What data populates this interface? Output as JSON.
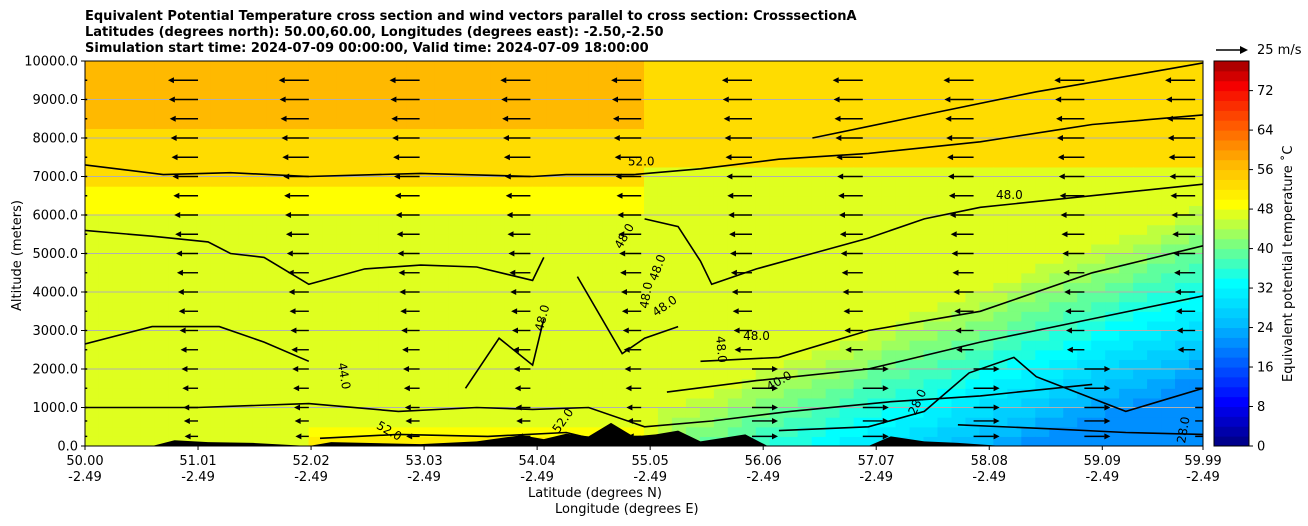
{
  "chart_data": {
    "type": "heatmap",
    "title_lines": [
      "Equivalent Potential Temperature cross section and wind vectors parallel to cross section: CrosssectionA",
      "Latitudes (degrees north): 50.00,60.00, Longitudes (degrees east): -2.50,-2.50",
      "Simulation start time: 2024-07-09 00:00:00, Valid time: 2024-07-09 18:00:00"
    ],
    "xlabel_lat": "Latitude (degrees N)",
    "xlabel_lon": "Longitude (degrees E)",
    "ylabel": "Altitude (meters)",
    "colorbar_label": "Equivalent potential temperature $^\\circ$C",
    "colorbar_label_display": "Equivalent potential temperature ˚C",
    "quiver_key": "25 m/s",
    "x_ticks": [
      {
        "lat": "50.00",
        "lon": "-2.49",
        "v": 50.0
      },
      {
        "lat": "51.01",
        "lon": "-2.49",
        "v": 51.01
      },
      {
        "lat": "52.02",
        "lon": "-2.49",
        "v": 52.02
      },
      {
        "lat": "53.03",
        "lon": "-2.49",
        "v": 53.03
      },
      {
        "lat": "54.04",
        "lon": "-2.49",
        "v": 54.04
      },
      {
        "lat": "55.05",
        "lon": "-2.49",
        "v": 55.05
      },
      {
        "lat": "56.06",
        "lon": "-2.49",
        "v": 56.06
      },
      {
        "lat": "57.07",
        "lon": "-2.49",
        "v": 57.07
      },
      {
        "lat": "58.08",
        "lon": "-2.49",
        "v": 58.08
      },
      {
        "lat": "59.09",
        "lon": "-2.49",
        "v": 59.09
      },
      {
        "lat": "59.99",
        "lon": "-2.49",
        "v": 59.99
      }
    ],
    "y_ticks": [
      "0.0",
      "1000.0",
      "2000.0",
      "3000.0",
      "4000.0",
      "5000.0",
      "6000.0",
      "7000.0",
      "8000.0",
      "9000.0",
      "10000.0"
    ],
    "xlim": [
      50.0,
      59.99
    ],
    "ylim": [
      0,
      10000
    ],
    "colorbar_ticks": [
      "0",
      "8",
      "16",
      "24",
      "32",
      "40",
      "48",
      "56",
      "64",
      "72"
    ],
    "colorbar_range": [
      0,
      78
    ],
    "colorbar_step": 2,
    "contour_labels": [
      {
        "text": "52.0",
        "lat": 54.97,
        "alt": 7280,
        "rot": 0
      },
      {
        "text": "48.0",
        "lat": 58.26,
        "alt": 6420,
        "rot": 0
      },
      {
        "text": "48.0",
        "lat": 54.85,
        "alt": 5400,
        "rot": -60
      },
      {
        "text": "48.0",
        "lat": 55.15,
        "alt": 4600,
        "rot": -70
      },
      {
        "text": "48.0",
        "lat": 55.05,
        "alt": 3900,
        "rot": -80
      },
      {
        "text": "48.0",
        "lat": 55.2,
        "alt": 3550,
        "rot": -35
      },
      {
        "text": "48.0",
        "lat": 54.12,
        "alt": 3300,
        "rot": -75
      },
      {
        "text": "48.0",
        "lat": 56.0,
        "alt": 2750,
        "rot": 0
      },
      {
        "text": "48.0",
        "lat": 55.65,
        "alt": 2500,
        "rot": 85
      },
      {
        "text": "44.0",
        "lat": 52.28,
        "alt": 1800,
        "rot": 80
      },
      {
        "text": "40.0",
        "lat": 56.22,
        "alt": 1600,
        "rot": -30
      },
      {
        "text": "28.0",
        "lat": 57.47,
        "alt": 1100,
        "rot": -65
      },
      {
        "text": "52.0",
        "lat": 52.7,
        "alt": 300,
        "rot": 30
      },
      {
        "text": "52.0",
        "lat": 54.3,
        "alt": 600,
        "rot": -55
      },
      {
        "text": "28.0",
        "lat": 59.85,
        "alt": 400,
        "rot": -80
      }
    ]
  }
}
